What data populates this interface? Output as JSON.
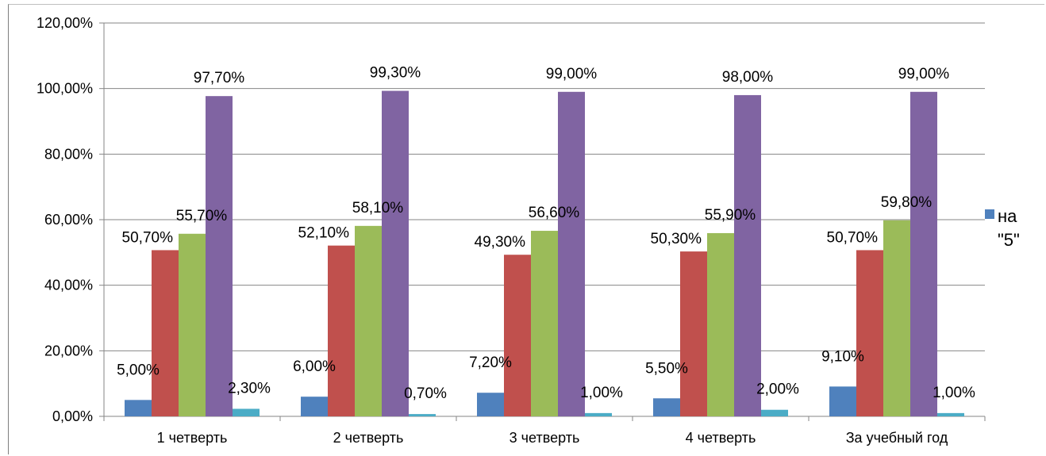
{
  "chart_data": {
    "type": "bar",
    "categories": [
      "1 четверть",
      "2 четверть",
      "3 четверть",
      "4 четверть",
      "За учебный год"
    ],
    "series": [
      {
        "name": "на \"5\"",
        "color": "#4F81BD",
        "values": [
          5.0,
          6.0,
          7.2,
          5.5,
          9.1
        ],
        "labels": [
          "5,00%",
          "6,00%",
          "7,20%",
          "5,50%",
          "9,10%"
        ]
      },
      {
        "color": "#C0504D",
        "values": [
          50.7,
          52.1,
          49.3,
          50.3,
          50.7
        ],
        "labels": [
          "50,70%",
          "52,10%",
          "49,30%",
          "50,30%",
          "50,70%"
        ]
      },
      {
        "color": "#9BBB59",
        "values": [
          55.7,
          58.1,
          56.6,
          55.9,
          59.8
        ],
        "labels": [
          "55,70%",
          "58,10%",
          "56,60%",
          "55,90%",
          "59,80%"
        ]
      },
      {
        "color": "#8064A2",
        "values": [
          97.7,
          99.3,
          99.0,
          98.0,
          99.0
        ],
        "labels": [
          "97,70%",
          "99,30%",
          "99,00%",
          "98,00%",
          "99,00%"
        ]
      },
      {
        "color": "#4BACC6",
        "values": [
          2.3,
          0.7,
          1.0,
          2.0,
          1.0
        ],
        "labels": [
          "2,30%",
          "0,70%",
          "1,00%",
          "2,00%",
          "1,00%"
        ]
      }
    ],
    "ylim": [
      0,
      120
    ],
    "yticks": [
      "0,00%",
      "20,00%",
      "40,00%",
      "60,00%",
      "80,00%",
      "100,00%",
      "120,00%"
    ],
    "grid": true,
    "legend": {
      "position": "right",
      "entries": [
        "на \"5\""
      ]
    }
  }
}
